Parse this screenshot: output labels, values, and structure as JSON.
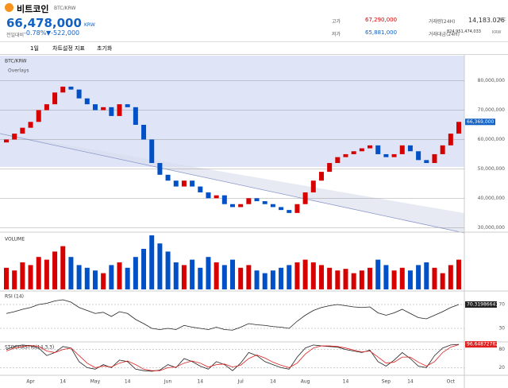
{
  "header": {
    "coin": "비트코인",
    "pair": "BTC/KRW",
    "price": "66,478,000",
    "currency": "KRW",
    "change_label": "전일대비",
    "change_pct": "-0.78%",
    "change_amt": "▼-522,000",
    "stats": [
      {
        "label": "고가",
        "value": "67,290,000"
      },
      {
        "label": "저가",
        "value": "65,881,000"
      },
      {
        "label": "거래량(24H)",
        "value": "14,183.026",
        "unit": "BTC"
      },
      {
        "label": "거래대금(24H)",
        "value": "824,951,474,033",
        "unit": "KRW"
      }
    ]
  },
  "toolbar": {
    "items": [
      "1일",
      "차트설정",
      "지표",
      "초기화"
    ]
  },
  "chart_data": [
    {
      "type": "candlestick",
      "title": "BTC/KRW",
      "legend": "Overlays",
      "up_color": "#d60000",
      "down_color": "#0051c7",
      "price_tag": "66,369,000",
      "open": [
        59000000,
        60000000,
        62000000,
        64000000,
        66000000,
        70000000,
        72000000,
        76000000,
        78000000,
        77000000,
        74000000,
        72000000,
        70000000,
        71000000,
        68000000,
        72000000,
        71000000,
        65000000,
        60000000,
        52000000,
        48000000,
        46000000,
        44000000,
        46000000,
        44000000,
        42000000,
        40000000,
        41000000,
        38000000,
        37000000,
        38000000,
        40000000,
        39000000,
        38000000,
        37000000,
        36000000,
        35000000,
        38000000,
        42000000,
        46000000,
        49000000,
        52000000,
        54000000,
        55000000,
        56000000,
        57000000,
        58000000,
        55000000,
        54000000,
        55000000,
        58000000,
        56000000,
        53000000,
        52000000,
        55000000,
        58000000,
        62000000
      ],
      "close": [
        60000000,
        62000000,
        64000000,
        66000000,
        70000000,
        72000000,
        76000000,
        78000000,
        77000000,
        74000000,
        72000000,
        70000000,
        71000000,
        68000000,
        72000000,
        71000000,
        65000000,
        60000000,
        52000000,
        48000000,
        46000000,
        44000000,
        46000000,
        44000000,
        42000000,
        40000000,
        41000000,
        38000000,
        37000000,
        38000000,
        40000000,
        39000000,
        38000000,
        37000000,
        36000000,
        35000000,
        38000000,
        42000000,
        46000000,
        49000000,
        52000000,
        54000000,
        55000000,
        56000000,
        57000000,
        58000000,
        55000000,
        54000000,
        55000000,
        58000000,
        56000000,
        53000000,
        52000000,
        55000000,
        58000000,
        62000000,
        66000000
      ],
      "ylim": [
        29000000,
        88000000
      ],
      "yticks": [
        {
          "value": 30000000,
          "label": "30,000,000"
        },
        {
          "value": 40000000,
          "label": "40,000,000"
        },
        {
          "value": 50000000,
          "label": "50,000,000"
        },
        {
          "value": 60000000,
          "label": "60,000,000"
        },
        {
          "value": 70000000,
          "label": "70,000,000"
        },
        {
          "value": 80000000,
          "label": "80,000,000"
        }
      ]
    },
    {
      "type": "bar",
      "title": "VOLUME",
      "ylim": [
        0,
        100
      ],
      "values": [
        40,
        35,
        50,
        45,
        60,
        55,
        70,
        80,
        60,
        45,
        40,
        35,
        30,
        45,
        50,
        40,
        60,
        75,
        100,
        85,
        70,
        50,
        45,
        55,
        40,
        60,
        50,
        45,
        55,
        40,
        45,
        35,
        30,
        35,
        40,
        45,
        50,
        55,
        50,
        45,
        40,
        35,
        38,
        30,
        35,
        40,
        55,
        45,
        35,
        40,
        35,
        45,
        50,
        40,
        30,
        45,
        55
      ]
    },
    {
      "type": "line",
      "title": "RSI (14)",
      "ylim": [
        10,
        90
      ],
      "yticks": [
        30,
        70
      ],
      "value_tag": "70.31986641",
      "series": [
        {
          "color": "#222222",
          "values": [
            55,
            58,
            62,
            65,
            70,
            72,
            76,
            78,
            74,
            65,
            60,
            55,
            57,
            50,
            58,
            55,
            45,
            38,
            30,
            28,
            30,
            28,
            35,
            32,
            30,
            28,
            32,
            28,
            27,
            32,
            38,
            36,
            35,
            33,
            32,
            30,
            42,
            52,
            60,
            65,
            68,
            70,
            68,
            66,
            65,
            66,
            56,
            52,
            56,
            62,
            55,
            48,
            46,
            52,
            58,
            65,
            70
          ]
        }
      ]
    },
    {
      "type": "line",
      "title": "STOCHASTIC(14,3,3)",
      "ylim": [
        0,
        100
      ],
      "yticks": [
        20,
        80
      ],
      "value_tag": "96.64872762",
      "categories": [
        null,
        null,
        null,
        "Apr",
        null,
        null,
        null,
        "14",
        null,
        null,
        null,
        "May",
        null,
        null,
        null,
        "14",
        null,
        null,
        null,
        null,
        "Jun",
        null,
        null,
        null,
        "14",
        null,
        null,
        null,
        null,
        "Jul",
        null,
        null,
        null,
        "14",
        null,
        null,
        null,
        "Aug",
        null,
        null,
        null,
        null,
        "14",
        null,
        null,
        null,
        null,
        "Sep",
        null,
        null,
        "14",
        null,
        null,
        null,
        null,
        "Oct",
        null
      ],
      "series": [
        {
          "color": "#222222",
          "values": [
            80,
            90,
            95,
            92,
            85,
            60,
            70,
            90,
            85,
            40,
            20,
            15,
            30,
            20,
            45,
            40,
            15,
            10,
            8,
            12,
            30,
            20,
            50,
            40,
            25,
            15,
            40,
            30,
            10,
            35,
            70,
            60,
            40,
            30,
            20,
            15,
            55,
            85,
            95,
            92,
            90,
            88,
            80,
            75,
            70,
            78,
            40,
            25,
            45,
            70,
            50,
            25,
            20,
            60,
            85,
            95,
            97
          ]
        },
        {
          "color": "#e02020",
          "values": [
            75,
            85,
            90,
            93,
            90,
            75,
            70,
            80,
            85,
            60,
            35,
            20,
            25,
            22,
            35,
            42,
            30,
            15,
            10,
            10,
            20,
            22,
            35,
            42,
            35,
            22,
            30,
            32,
            22,
            28,
            50,
            62,
            52,
            38,
            28,
            20,
            35,
            65,
            85,
            92,
            92,
            90,
            85,
            78,
            72,
            75,
            55,
            35,
            38,
            55,
            55,
            38,
            25,
            40,
            70,
            88,
            96
          ]
        }
      ]
    }
  ]
}
